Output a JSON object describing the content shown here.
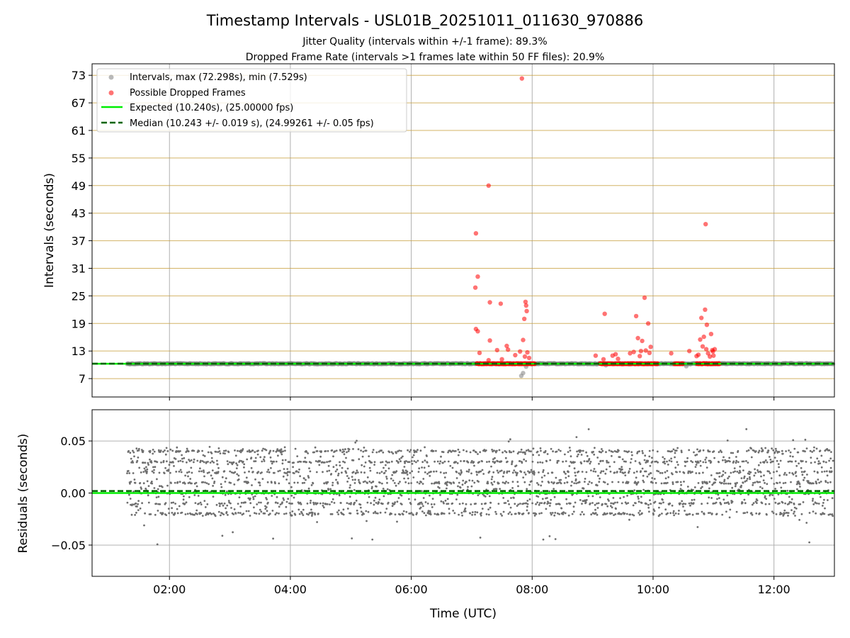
{
  "chart_data": {
    "type": "scatter",
    "title": "Timestamp Intervals - USL01B_20251011_011630_970886",
    "subtitle_lines": [
      "Jitter Quality (intervals within +/-1 frame): 89.3%",
      "Dropped Frame Rate (intervals >1 frames late within 50 FF files): 20.9%"
    ],
    "xlabel": "Time (UTC)",
    "x_ticks": [
      "02:00",
      "04:00",
      "06:00",
      "08:00",
      "10:00",
      "12:00"
    ],
    "x_tick_hours": [
      2,
      4,
      6,
      8,
      10,
      12
    ],
    "xlim_hours": [
      0.72,
      13.0
    ],
    "colors": {
      "intervals": "#808080",
      "dropped": "#ff0000",
      "expected": "#00ee00",
      "median": "#006400",
      "grid": "#b0b0b0",
      "frame_lines": "#c8a040"
    },
    "top_panel": {
      "ylabel": "Intervals (seconds)",
      "ylim": [
        3.0,
        75.5
      ],
      "y_ticks": [
        "7",
        "13",
        "19",
        "25",
        "31",
        "37",
        "43",
        "49",
        "55",
        "61",
        "67",
        "73"
      ],
      "y_tick_values": [
        7,
        13,
        19,
        25,
        31,
        37,
        43,
        49,
        55,
        61,
        67,
        73
      ],
      "frame_line_values": [
        7,
        13,
        19,
        25,
        31,
        37,
        43,
        49,
        55,
        61,
        67,
        73
      ],
      "expected_value": 10.24,
      "median_value": 10.243,
      "interval_series": {
        "name": "Intervals, max (72.298s), min (7.529s)",
        "start_hour": 1.3,
        "end_hour": 12.98,
        "baseline": 10.24,
        "outliers": [
          [
            7.82,
            7.6
          ],
          [
            7.85,
            8.2
          ],
          [
            7.9,
            9.6
          ],
          [
            10.55,
            9.7
          ],
          [
            9.22,
            9.9
          ]
        ]
      },
      "dropped_series": {
        "name": "Possible Dropped Frames",
        "clusters": [
          [
            7.08,
            8.05
          ],
          [
            9.12,
            10.08
          ],
          [
            10.35,
            10.5
          ],
          [
            10.72,
            11.1
          ]
        ],
        "points": [
          [
            7.07,
            38.6
          ],
          [
            7.06,
            26.8
          ],
          [
            7.1,
            29.2
          ],
          [
            7.07,
            17.8
          ],
          [
            7.1,
            17.3
          ],
          [
            7.13,
            12.6
          ],
          [
            7.28,
            49.0
          ],
          [
            7.3,
            23.6
          ],
          [
            7.3,
            15.3
          ],
          [
            7.28,
            11.0
          ],
          [
            7.42,
            13.2
          ],
          [
            7.48,
            23.3
          ],
          [
            7.5,
            11.2
          ],
          [
            7.58,
            14.1
          ],
          [
            7.6,
            13.3
          ],
          [
            7.72,
            12.1
          ],
          [
            7.8,
            12.9
          ],
          [
            7.83,
            72.3
          ],
          [
            7.85,
            15.4
          ],
          [
            7.87,
            20.0
          ],
          [
            7.89,
            23.7
          ],
          [
            7.9,
            22.9
          ],
          [
            7.91,
            21.7
          ],
          [
            7.88,
            11.8
          ],
          [
            7.92,
            12.7
          ],
          [
            7.95,
            11.5
          ],
          [
            9.05,
            12.0
          ],
          [
            9.2,
            21.1
          ],
          [
            9.18,
            11.2
          ],
          [
            9.33,
            12.0
          ],
          [
            9.38,
            12.3
          ],
          [
            9.42,
            11.3
          ],
          [
            9.62,
            12.5
          ],
          [
            9.68,
            12.8
          ],
          [
            9.72,
            20.6
          ],
          [
            9.75,
            15.8
          ],
          [
            9.78,
            11.9
          ],
          [
            9.8,
            13.0
          ],
          [
            9.82,
            15.2
          ],
          [
            9.86,
            24.6
          ],
          [
            9.88,
            13.1
          ],
          [
            9.92,
            19.0
          ],
          [
            9.94,
            12.6
          ],
          [
            9.96,
            13.9
          ],
          [
            10.3,
            12.5
          ],
          [
            10.6,
            13.0
          ],
          [
            10.72,
            11.9
          ],
          [
            10.78,
            15.5
          ],
          [
            10.8,
            20.2
          ],
          [
            10.82,
            14.0
          ],
          [
            10.84,
            16.1
          ],
          [
            10.86,
            22.0
          ],
          [
            10.87,
            40.6
          ],
          [
            10.89,
            18.7
          ],
          [
            10.88,
            13.4
          ],
          [
            10.91,
            12.5
          ],
          [
            10.94,
            11.8
          ],
          [
            10.96,
            16.7
          ],
          [
            10.98,
            13.2
          ],
          [
            10.99,
            12.9
          ],
          [
            11.0,
            12.0
          ],
          [
            11.02,
            13.4
          ],
          [
            10.75,
            12.2
          ]
        ]
      }
    },
    "legend": {
      "placement": "top-left",
      "entries": [
        "Intervals, max (72.298s), min (7.529s)",
        "Possible Dropped Frames",
        "Expected (10.240s), (25.00000 fps)",
        "Median (10.243 +/- 0.019 s), (24.99261 +/- 0.05 fps)"
      ]
    },
    "bottom_panel": {
      "ylabel": "Residuals (seconds)",
      "ylim": [
        -0.08,
        0.08
      ],
      "y_ticks": [
        "0.05",
        "0.00",
        "−0.05"
      ],
      "y_tick_values": [
        0.05,
        0.0,
        -0.05
      ],
      "expected_residual": 0.0,
      "median_residual": 0.002,
      "residual_series": {
        "start_hour": 1.3,
        "end_hour": 12.98,
        "typical_range": [
          -0.02,
          0.04
        ],
        "extreme_range": [
          -0.05,
          0.063
        ]
      }
    }
  }
}
